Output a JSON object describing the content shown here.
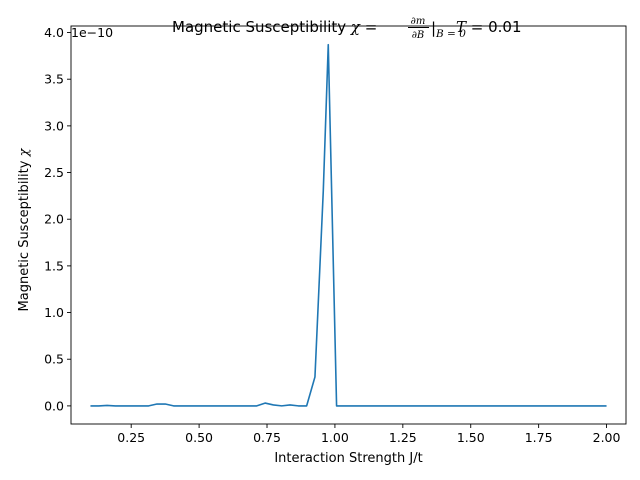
{
  "chart_data": {
    "type": "line",
    "title": {
      "prefix": "Magnetic Susceptibility ",
      "chi": "χ",
      "equals": " = ",
      "frac_num": "∂m",
      "frac_den": "∂B",
      "bar": "|",
      "sub": "B = 0",
      "T": "T",
      "suffix": " = 0.01"
    },
    "xlabel": "Interaction Strength J/t",
    "ylabel": {
      "text": "Magnetic Susceptibility ",
      "symbol": "χ"
    },
    "y_offset_label": "1e−10",
    "xlim": [
      0.0284,
      2.0716
    ],
    "ylim": [
      -0.194,
      4.07
    ],
    "x_ticks": [
      {
        "value": 0.25,
        "label": "0.25"
      },
      {
        "value": 0.5,
        "label": "0.50"
      },
      {
        "value": 0.75,
        "label": "0.75"
      },
      {
        "value": 1.0,
        "label": "1.00"
      },
      {
        "value": 1.25,
        "label": "1.25"
      },
      {
        "value": 1.5,
        "label": "1.50"
      },
      {
        "value": 1.75,
        "label": "1.75"
      },
      {
        "value": 2.0,
        "label": "2.00"
      }
    ],
    "y_ticks": [
      {
        "value": 0.0,
        "label": "0.0"
      },
      {
        "value": 0.5,
        "label": "0.5"
      },
      {
        "value": 1.0,
        "label": "1.0"
      },
      {
        "value": 1.5,
        "label": "1.5"
      },
      {
        "value": 2.0,
        "label": "2.0"
      },
      {
        "value": 2.5,
        "label": "2.5"
      },
      {
        "value": 3.0,
        "label": "3.0"
      },
      {
        "value": 3.5,
        "label": "3.5"
      },
      {
        "value": 4.0,
        "label": "4.0"
      }
    ],
    "grid": false,
    "line_color": "#1f77b4",
    "series": [
      {
        "x": [
          0.1,
          0.1306,
          0.1612,
          0.1918,
          0.2224,
          0.2531,
          0.2837,
          0.3143,
          0.3449,
          0.3755,
          0.4061,
          0.4367,
          0.4673,
          0.498,
          0.5286,
          0.5592,
          0.5898,
          0.6204,
          0.651,
          0.6816,
          0.7122,
          0.7429,
          0.7735,
          0.8041,
          0.8347,
          0.8653,
          0.8959,
          0.9265,
          0.9571,
          0.9755,
          1.0061,
          1.0367,
          1.0673,
          1.098,
          1.1286,
          1.1592,
          1.1898,
          1.2204,
          1.251,
          1.2816,
          1.3122,
          1.3429,
          1.3735,
          1.4041,
          1.4347,
          1.4653,
          1.4959,
          1.5265,
          1.5571,
          1.5878,
          1.6184,
          1.649,
          1.6796,
          1.7102,
          1.7408,
          1.7714,
          1.802,
          1.8327,
          1.8633,
          1.8939,
          1.9245,
          1.9551,
          1.9857,
          2.0
        ],
        "y": [
          0.0,
          0.0,
          0.005,
          0.0,
          0.0,
          0.0,
          0.0,
          0.0,
          0.02,
          0.02,
          0.0,
          0.0,
          0.0,
          0.0,
          0.0,
          0.0,
          0.0,
          0.0,
          0.0,
          0.0,
          0.0,
          0.03,
          0.01,
          0.0,
          0.01,
          0.0,
          0.0,
          0.31,
          2.3,
          3.87,
          0.0,
          0.0,
          0.0,
          0.0,
          0.0,
          0.0,
          0.0,
          0.0,
          0.0,
          0.0,
          0.0,
          0.0,
          0.0,
          0.0,
          0.0,
          0.0,
          0.0,
          0.0,
          0.0,
          0.0,
          0.0,
          0.0,
          0.0,
          0.0,
          0.0,
          0.0,
          0.0,
          0.0,
          0.0,
          0.0,
          0.0,
          0.0,
          0.0,
          0.0
        ]
      }
    ]
  }
}
